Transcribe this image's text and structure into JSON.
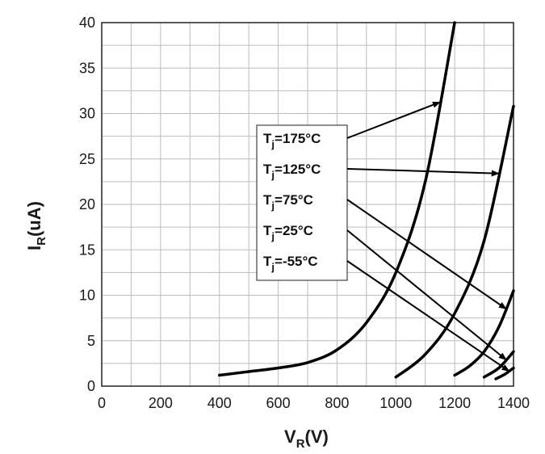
{
  "chart_data": {
    "type": "line",
    "title": "",
    "xlabel_main": "V",
    "xlabel_sub": "R",
    "xlabel_unit": "(V)",
    "ylabel_main": "I",
    "ylabel_sub": "R",
    "ylabel_unit": "(uA)",
    "xlim": [
      0,
      1400
    ],
    "ylim": [
      0,
      40
    ],
    "x_ticks": [
      0,
      200,
      400,
      600,
      800,
      1000,
      1200,
      1400
    ],
    "y_ticks": [
      0,
      5,
      10,
      15,
      20,
      25,
      30,
      35,
      40
    ],
    "grid": true,
    "legend_placement": "center",
    "series": [
      {
        "prefix": "T",
        "sub": "j",
        "value": "=175°C",
        "x": [
          400,
          500,
          600,
          700,
          800,
          900,
          1000,
          1100,
          1200
        ],
        "y": [
          1.2,
          1.6,
          2.0,
          2.6,
          4.0,
          7.0,
          12.5,
          22.5,
          40
        ]
      },
      {
        "prefix": "T",
        "sub": "j",
        "value": "=125°C",
        "x": [
          1000,
          1100,
          1200,
          1300,
          1400
        ],
        "y": [
          1.0,
          3.5,
          8.0,
          16.0,
          30.8
        ]
      },
      {
        "prefix": "T",
        "sub": "j",
        "value": "=75°C",
        "x": [
          1200,
          1250,
          1300,
          1350,
          1400
        ],
        "y": [
          1.2,
          2.2,
          3.8,
          6.5,
          10.5
        ]
      },
      {
        "prefix": "T",
        "sub": "j",
        "value": "=25°C",
        "x": [
          1300,
          1350,
          1400
        ],
        "y": [
          1.0,
          2.0,
          3.8
        ]
      },
      {
        "prefix": "T",
        "sub": "j",
        "value": "=-55°C",
        "x": [
          1340,
          1370,
          1400
        ],
        "y": [
          0.8,
          1.3,
          2.0
        ]
      }
    ]
  }
}
